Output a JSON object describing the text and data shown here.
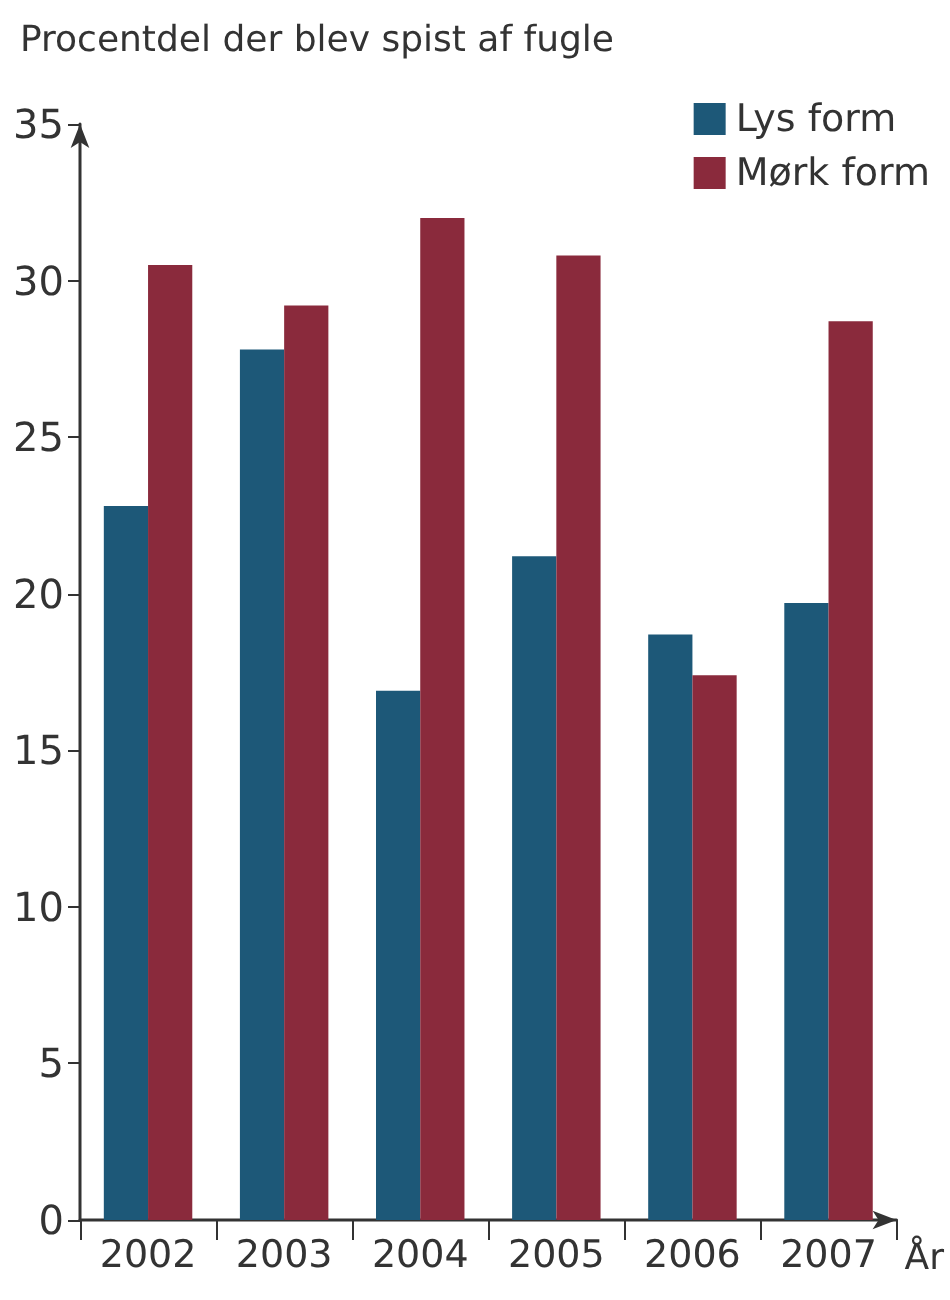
{
  "chart_data": {
    "type": "bar",
    "title": "Procentdel der blev spist af fugle",
    "xlabel": "År",
    "categories": [
      "2002",
      "2003",
      "2004",
      "2005",
      "2006",
      "2007"
    ],
    "series": [
      {
        "name": "Lys form",
        "color": "#1d5878",
        "values": [
          22.8,
          27.8,
          16.9,
          21.2,
          18.7,
          19.7
        ]
      },
      {
        "name": "Mørk form",
        "color": "#8a2a3c",
        "values": [
          30.5,
          29.2,
          32.0,
          30.8,
          17.4,
          28.7
        ]
      }
    ],
    "ylim": [
      0,
      35
    ],
    "yticks": [
      0,
      5,
      10,
      15,
      20,
      25,
      30,
      35
    ],
    "grid": false,
    "legend": "top right"
  }
}
